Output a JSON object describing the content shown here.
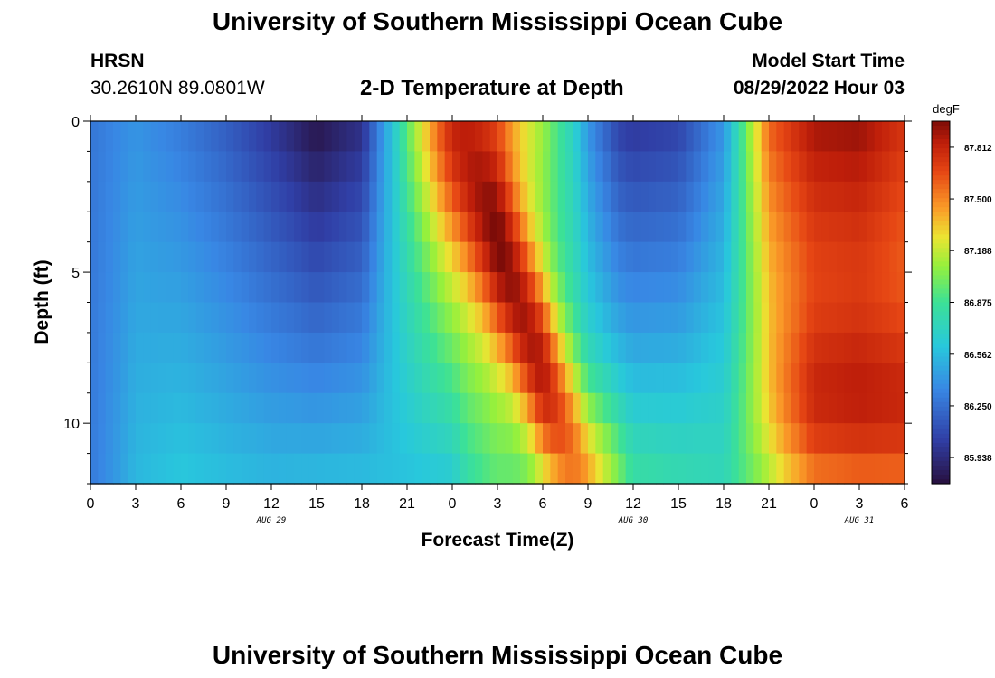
{
  "page": {
    "title": "University of Southern Mississippi Ocean Cube",
    "footer_title": "University of Southern Mississippi Ocean Cube",
    "station": "HRSN",
    "coords": "30.2610N  89.0801W",
    "subtitle": "2-D Temperature at Depth",
    "model_start_label": "Model Start Time",
    "model_start_value": "08/29/2022 Hour 03"
  },
  "chart_data": {
    "type": "heatmap",
    "title": "2-D Temperature at Depth",
    "xlabel": "Forecast Time(Z)",
    "ylabel": "Depth (ft)",
    "x_tick_labels": [
      "0",
      "3",
      "6",
      "9",
      "12",
      "15",
      "18",
      "21",
      "0",
      "3",
      "6",
      "9",
      "12",
      "15",
      "18",
      "21",
      "0",
      "3",
      "6"
    ],
    "x_range_hours": [
      0,
      54
    ],
    "date_labels": [
      {
        "label": "AUG 29",
        "hour": 12
      },
      {
        "label": "AUG 30",
        "hour": 36
      },
      {
        "label": "AUG 31",
        "hour": 51
      }
    ],
    "y_tick_labels": [
      "0",
      "5",
      "10"
    ],
    "y_ticks": [
      0,
      5,
      10
    ],
    "y_range_ft": [
      0,
      12
    ],
    "colorbar": {
      "unit": "degF",
      "labels": [
        "87.812",
        "87.500",
        "87.188",
        "86.875",
        "86.562",
        "86.250",
        "85.938"
      ],
      "min": 85.78,
      "max": 87.97
    },
    "depth_rows_ft": [
      0.5,
      1.5,
      2.5,
      3.5,
      4.5,
      5.5,
      6.5,
      7.5,
      8.5,
      9.5,
      10.5,
      11.5
    ],
    "surface_anchors": [
      [
        0,
        86.28
      ],
      [
        3,
        86.4
      ],
      [
        6,
        86.3
      ],
      [
        9,
        86.17
      ],
      [
        12,
        86.0
      ],
      [
        15,
        85.8
      ],
      [
        18,
        85.95
      ],
      [
        20,
        86.6
      ],
      [
        21,
        86.9
      ],
      [
        23,
        87.4
      ],
      [
        24,
        87.6
      ],
      [
        27,
        87.55
      ],
      [
        30,
        87.1
      ],
      [
        32,
        86.7
      ],
      [
        33,
        86.4
      ],
      [
        35,
        86.05
      ],
      [
        36,
        86.0
      ],
      [
        39,
        86.05
      ],
      [
        42,
        86.4
      ],
      [
        43,
        86.8
      ],
      [
        45,
        87.6
      ],
      [
        48,
        87.9
      ],
      [
        51,
        87.93
      ],
      [
        54,
        87.75
      ]
    ],
    "bottom_anchors": [
      [
        0,
        86.3
      ],
      [
        2,
        86.45
      ],
      [
        3,
        86.55
      ],
      [
        6,
        86.62
      ],
      [
        9,
        86.58
      ],
      [
        12,
        86.55
      ],
      [
        15,
        86.57
      ],
      [
        18,
        86.58
      ],
      [
        21,
        86.58
      ],
      [
        24,
        86.62
      ],
      [
        25,
        86.8
      ],
      [
        27,
        86.95
      ],
      [
        30,
        86.92
      ],
      [
        33,
        86.85
      ],
      [
        36,
        86.75
      ],
      [
        39,
        86.75
      ],
      [
        42,
        86.76
      ],
      [
        44,
        86.9
      ],
      [
        46,
        87.1
      ],
      [
        48,
        87.25
      ],
      [
        51,
        87.3
      ],
      [
        54,
        87.3
      ]
    ],
    "axis_split_anchors": [
      [
        0,
        0.0
      ],
      [
        21,
        0.0
      ],
      [
        24,
        0.1
      ],
      [
        27,
        0.35
      ],
      [
        30,
        0.7
      ],
      [
        33,
        1.0
      ],
      [
        36,
        1.0
      ],
      [
        42,
        0.9
      ],
      [
        45,
        0.8
      ],
      [
        54,
        0.8
      ]
    ],
    "warm_pulse_anchors": [
      [
        0,
        0
      ],
      [
        20,
        0
      ],
      [
        24,
        0.25
      ],
      [
        27,
        0.65
      ],
      [
        30,
        0.9
      ],
      [
        33,
        0.6
      ],
      [
        36,
        0.1
      ],
      [
        42,
        0
      ],
      [
        45,
        0.2
      ],
      [
        48,
        0.4
      ],
      [
        54,
        0.4
      ]
    ]
  }
}
